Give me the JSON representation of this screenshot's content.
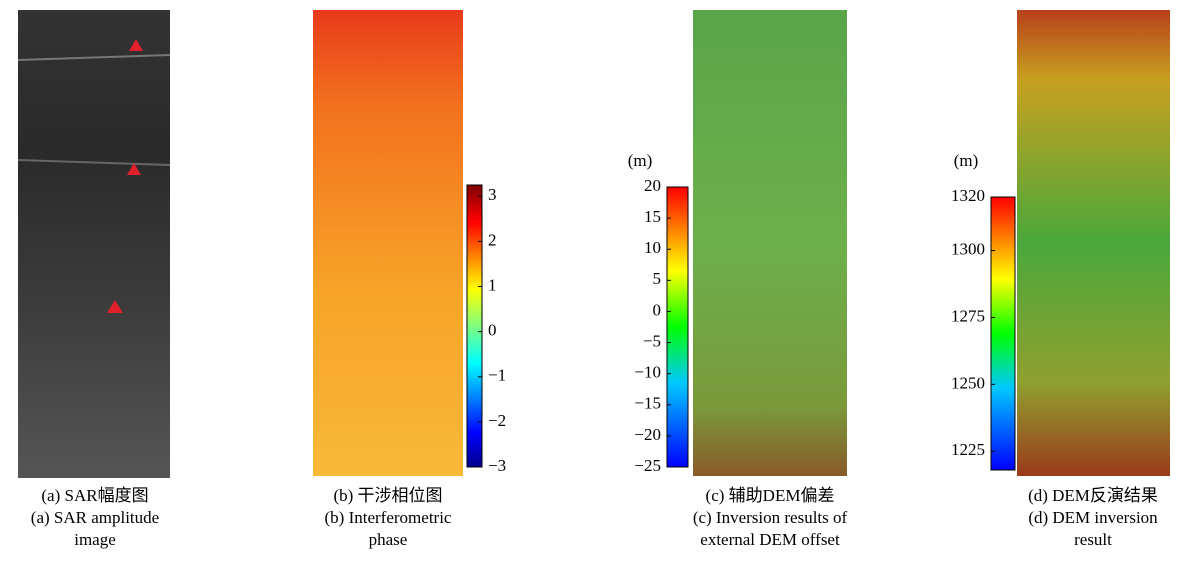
{
  "panels": [
    {
      "caption_cn": "(a) SAR幅度图",
      "caption_en": [
        "(a) SAR amplitude",
        "image"
      ]
    },
    {
      "caption_cn": "(b) 干涉相位图",
      "caption_en": [
        "(b) Interferometric",
        "phase"
      ],
      "colorbar": {
        "lim": [
          -3,
          3.25
        ],
        "ticks": [
          3,
          2,
          1,
          0,
          {
            "value": -1,
            "label": "−1"
          },
          {
            "value": -2,
            "label": "−2"
          },
          {
            "value": -3,
            "label": "−3"
          }
        ]
      }
    },
    {
      "caption_cn": "(c) 辅助DEM偏差",
      "caption_en": [
        "(c) Inversion results of",
        "external DEM offset"
      ],
      "colorbar": {
        "unit": "(m)",
        "lim": [
          -25,
          20
        ],
        "ticks": [
          20,
          15,
          10,
          5,
          0,
          {
            "value": -5,
            "label": "−5"
          },
          {
            "value": -10,
            "label": "−10"
          },
          {
            "value": -15,
            "label": "−15"
          },
          {
            "value": -20,
            "label": "−20"
          },
          {
            "value": -25,
            "label": "−25"
          }
        ]
      }
    },
    {
      "caption_cn": "(d) DEM反演结果",
      "caption_en": [
        "(d) DEM inversion",
        "result"
      ],
      "colorbar": {
        "unit": "(m)",
        "lim": [
          1218,
          1320
        ],
        "ticks": [
          1320,
          1300,
          1275,
          1250,
          1225
        ]
      }
    }
  ]
}
